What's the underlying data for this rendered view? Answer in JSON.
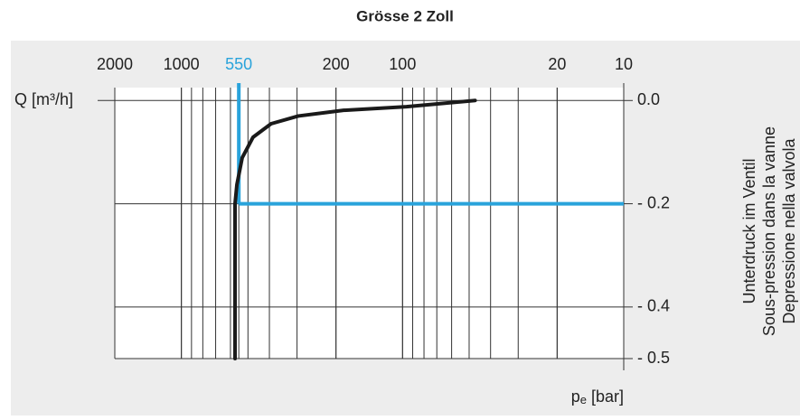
{
  "chart_data": {
    "type": "line",
    "title": "Grösse 2 Zoll",
    "y_label": "Q [m³/h]",
    "x_label": [
      "p",
      "e",
      "[bar]"
    ],
    "side_label": [
      "Unterdruck im Ventil",
      "Sous-pression dans la vanne",
      "Depressione nella valvola"
    ],
    "x_log": true,
    "xlim": [
      2000,
      10
    ],
    "xticks": [
      2000,
      1000,
      550,
      200,
      100,
      20,
      10
    ],
    "ylim": [
      -0.5,
      0.025
    ],
    "yticks": [
      {
        "value": 0,
        "label": "0.0"
      },
      {
        "value": -0.2,
        "label": "- 0.2"
      },
      {
        "value": -0.4,
        "label": "- 0.4"
      },
      {
        "value": -0.5,
        "label": "- 0.5"
      }
    ],
    "grid": true,
    "series": [
      {
        "color": "#1a1a1a",
        "x": [
          47,
          96,
          185,
          296,
          393,
          474,
          531,
          561,
          572,
          572
        ],
        "values": [
          0,
          -0.012,
          -0.019,
          -0.03,
          -0.045,
          -0.071,
          -0.111,
          -0.163,
          -0.2,
          -0.5
        ]
      }
    ],
    "marker": {
      "x": 550,
      "y": -0.2,
      "color": "#29a3db"
    }
  }
}
